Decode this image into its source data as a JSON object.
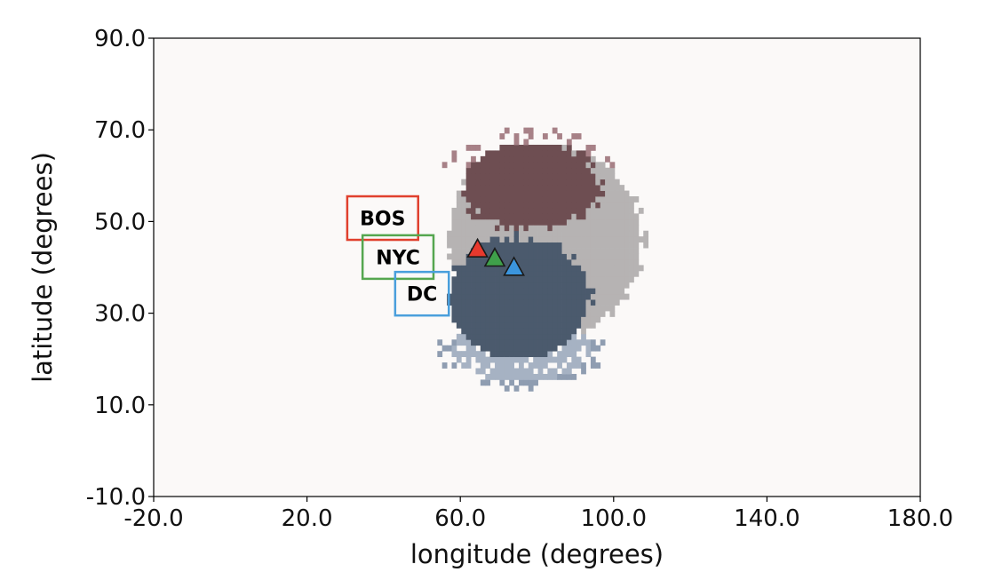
{
  "chart_data": {
    "type": "heatmap",
    "xlabel": "longitude (degrees)",
    "ylabel": "latitude (degrees)",
    "xlim": [
      -20.0,
      180.0
    ],
    "ylim": [
      -10.0,
      90.0
    ],
    "xticks": [
      -20.0,
      20.0,
      60.0,
      100.0,
      140.0,
      180.0
    ],
    "yticks": [
      -10.0,
      10.0,
      30.0,
      50.0,
      70.0,
      90.0
    ],
    "xtick_labels": [
      "-20.0",
      "20.0",
      "60.0",
      "100.0",
      "140.0",
      "180.0"
    ],
    "ytick_labels": [
      "-10.0",
      "10.0",
      "30.0",
      "50.0",
      "70.0",
      "90.0"
    ],
    "background_color": "#fbf9f8",
    "regions": [
      {
        "name": "outer",
        "color": "#b6b3b3",
        "center": [
          82,
          46
        ],
        "radii": [
          25,
          21
        ],
        "speckle_color": "#b6b3b3"
      },
      {
        "name": "north",
        "color": "#6e4e52",
        "center": [
          78,
          58
        ],
        "radii": [
          17,
          9
        ],
        "speckle_color": "#a78187"
      },
      {
        "name": "south",
        "color": "#4b5a6d",
        "center": [
          75,
          33
        ],
        "radii": [
          18,
          13
        ],
        "speckle_color": "#4b5a6d"
      },
      {
        "name": "south-fringe",
        "color": "#a6b2c3",
        "center": [
          76,
          22
        ],
        "radii": [
          18,
          7
        ],
        "speckle_color": "#8f9db1"
      }
    ],
    "annotations": [
      {
        "label": "BOS",
        "box_color": "#e0402e",
        "box_x": [
          30.5,
          49.0
        ],
        "box_y": [
          46.0,
          55.5
        ],
        "marker_color": "#e8392d",
        "marker": [
          64.5,
          44.0
        ]
      },
      {
        "label": "NYC",
        "box_color": "#55a64f",
        "box_x": [
          34.5,
          53.0
        ],
        "box_y": [
          37.5,
          47.0
        ],
        "marker_color": "#3fa04a",
        "marker": [
          69.0,
          42.0
        ]
      },
      {
        "label": "DC",
        "box_color": "#4a9fdc",
        "box_x": [
          43.0,
          57.0
        ],
        "box_y": [
          29.5,
          39.0
        ],
        "marker_color": "#3b95dd",
        "marker": [
          74.0,
          40.0
        ]
      }
    ]
  }
}
